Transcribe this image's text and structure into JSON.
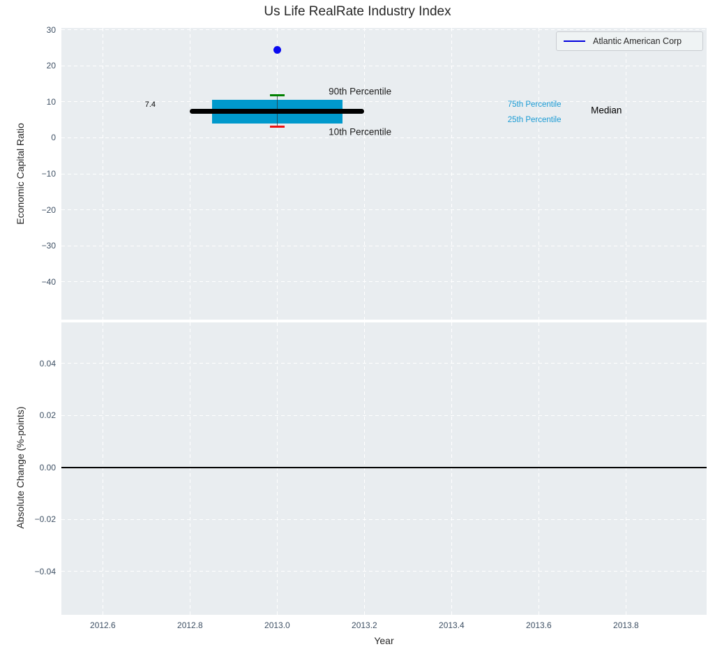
{
  "figure": {
    "title": "Us Life RealRate Industry Index",
    "plot_background": "#e9edf0",
    "grid_color": "#ffffff",
    "tick_color": "#3d4f63"
  },
  "legend": {
    "label": "Atlantic American Corp",
    "line_color": "#0000dd",
    "position": "upper right"
  },
  "chart_data": [
    {
      "type": "boxplot",
      "title": "Us Life RealRate Industry Index",
      "xlabel": "Year",
      "ylabel": "Economic Capital Ratio",
      "xlim": [
        2012.505,
        2013.985
      ],
      "ylim": [
        -50.5,
        30.5
      ],
      "xticks": [
        2012.6,
        2012.8,
        2013.0,
        2013.2,
        2013.4,
        2013.6,
        2013.8
      ],
      "xtick_labels": [
        "2012.6",
        "2012.8",
        "2013.0",
        "2013.2",
        "2013.4",
        "2013.6",
        "2013.8"
      ],
      "yticks": [
        30,
        20,
        10,
        0,
        -10,
        -20,
        -30,
        -40
      ],
      "ytick_labels": [
        "30",
        "20",
        "10",
        "0",
        "−10",
        "−20",
        "−30",
        "−40"
      ],
      "grid": true,
      "box": {
        "x": 2013.0,
        "median": 7.4,
        "p25": 3.9,
        "p75": 10.6,
        "p10": 3.1,
        "p90": 11.8,
        "box_x_range": [
          2012.85,
          2013.15
        ],
        "median_x_range": [
          2012.8,
          2013.2
        ],
        "cap_half_width": 0.017,
        "box_color": "#0099cc",
        "median_color": "#000000",
        "p90_cap_color": "#008000",
        "p10_cap_color": "#ee1111",
        "whisker_color": "#2a3a42"
      },
      "company_point": {
        "name": "Atlantic American Corp",
        "x": 2013.0,
        "y": 24.4,
        "color": "#0a0af0",
        "radius": 5.5
      },
      "annotations": [
        {
          "text": "7.4",
          "x": 2012.721,
          "y": 9.2,
          "color": "#000000",
          "size": 11,
          "align": "right"
        },
        {
          "text": "90th Percentile",
          "x": 2013.19,
          "y": 12.9,
          "color": "#1c1c1c",
          "size": 13.5,
          "align": "center"
        },
        {
          "text": "10th Percentile",
          "x": 2013.19,
          "y": 1.7,
          "color": "#1c1c1c",
          "size": 13.5,
          "align": "center"
        },
        {
          "text": "75th Percentile",
          "x": 2013.59,
          "y": 9.2,
          "color": "#1a9bd4",
          "size": 11.5,
          "align": "center"
        },
        {
          "text": "25th Percentile",
          "x": 2013.59,
          "y": 5.0,
          "color": "#1a9bd4",
          "size": 11.5,
          "align": "center"
        },
        {
          "text": "Median",
          "x": 2013.755,
          "y": 7.6,
          "color": "#000000",
          "size": 13.5,
          "align": "center"
        }
      ]
    },
    {
      "type": "line",
      "xlabel": "Year",
      "ylabel": "Absolute Change (%-points)",
      "xlim": [
        2012.505,
        2013.985
      ],
      "ylim": [
        -0.0562,
        0.0558
      ],
      "xticks": [
        2012.6,
        2012.8,
        2013.0,
        2013.2,
        2013.4,
        2013.6,
        2013.8
      ],
      "yticks": [
        0.04,
        0.02,
        0.0,
        -0.02,
        -0.04
      ],
      "ytick_labels": [
        "0.04",
        "0.02",
        "0.00",
        "−0.02",
        "−0.04"
      ],
      "grid": true,
      "zero_line": {
        "y": 0.0,
        "color": "#000000",
        "width": 1.5
      }
    }
  ]
}
